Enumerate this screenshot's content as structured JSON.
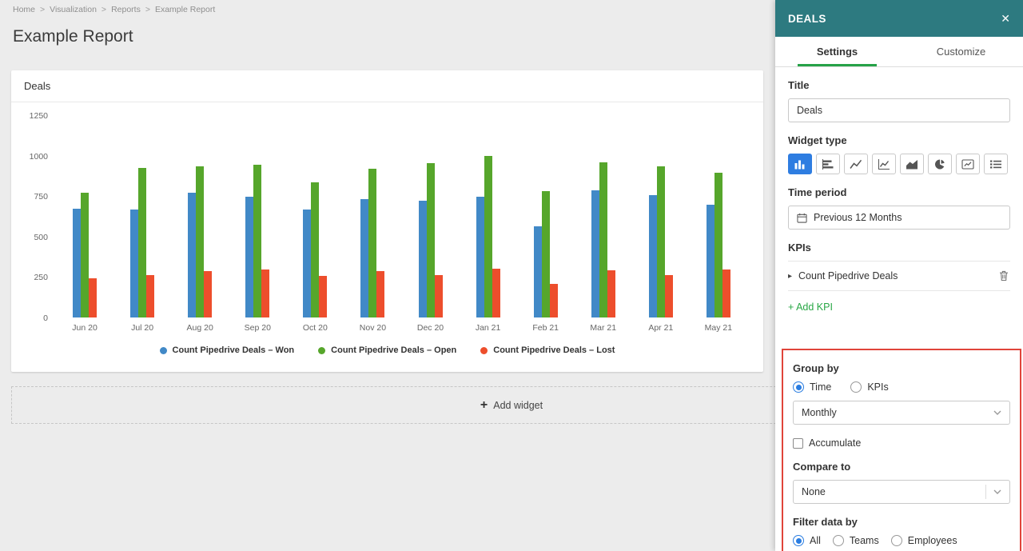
{
  "breadcrumb": {
    "separator": ">",
    "items": [
      "Home",
      "Visualization",
      "Reports",
      "Example Report"
    ]
  },
  "page": {
    "title": "Example Report",
    "add_widget_icon": "+",
    "add_widget_label": "Add widget"
  },
  "chart_data": {
    "type": "bar",
    "title": "Deals",
    "categories": [
      "Jun 20",
      "Jul 20",
      "Aug 20",
      "Sep 20",
      "Oct 20",
      "Nov 20",
      "Dec 20",
      "Jan 21",
      "Feb 21",
      "Mar 21",
      "Apr 21",
      "May 21"
    ],
    "series": [
      {
        "name": "Count Pipedrive Deals – Won",
        "color": "#4189c7",
        "values": [
          670,
          665,
          770,
          745,
          665,
          730,
          720,
          745,
          565,
          785,
          755,
          695
        ]
      },
      {
        "name": "Count Pipedrive Deals – Open",
        "color": "#56a62b",
        "values": [
          770,
          925,
          935,
          945,
          835,
          920,
          955,
          1000,
          780,
          960,
          935,
          895
        ]
      },
      {
        "name": "Count Pipedrive Deals – Lost",
        "color": "#ed4e2c",
        "values": [
          240,
          260,
          285,
          295,
          255,
          285,
          260,
          300,
          210,
          290,
          260,
          295
        ]
      }
    ],
    "ylim": [
      0,
      1250
    ],
    "yticks": [
      0,
      250,
      500,
      750,
      1000,
      1250
    ],
    "grid": false,
    "legend_position": "bottom"
  },
  "panel": {
    "header": {
      "title": "DEALS",
      "close_icon": "✕"
    },
    "tabs": [
      {
        "label": "Settings",
        "active": true
      },
      {
        "label": "Customize",
        "active": false
      }
    ],
    "title_field": {
      "label": "Title",
      "value": "Deals"
    },
    "widget_type": {
      "label": "Widget type",
      "options": [
        {
          "name": "column-chart",
          "active": true
        },
        {
          "name": "bar-chart",
          "active": false
        },
        {
          "name": "line-chart",
          "active": false
        },
        {
          "name": "combo-chart",
          "active": false
        },
        {
          "name": "area-chart",
          "active": false
        },
        {
          "name": "pie-chart",
          "active": false
        },
        {
          "name": "number-chart",
          "active": false
        },
        {
          "name": "table-chart",
          "active": false
        }
      ]
    },
    "time_period": {
      "label": "Time period",
      "icon": "calendar-icon",
      "value": "Previous 12 Months"
    },
    "kpis": {
      "label": "KPIs",
      "expander_icon": "▸",
      "items": [
        {
          "name": "Count Pipedrive Deals"
        }
      ],
      "add_label": "+ Add KPI"
    },
    "group_by": {
      "label": "Group by",
      "options": [
        {
          "label": "Time",
          "selected": true
        },
        {
          "label": "KPIs",
          "selected": false
        }
      ],
      "interval": "Monthly",
      "accumulate_label": "Accumulate",
      "accumulate_checked": false
    },
    "compare_to": {
      "label": "Compare to",
      "value": "None"
    },
    "filter": {
      "label": "Filter data by",
      "options": [
        {
          "label": "All",
          "selected": true
        },
        {
          "label": "Teams",
          "selected": false
        },
        {
          "label": "Employees",
          "selected": false
        }
      ]
    }
  },
  "colors": {
    "accent_blue": "#2e7de1",
    "teal_header": "#2d7a80",
    "tab_active_green": "#26a248",
    "add_kpi_green": "#28a745",
    "highlight_red": "#e0443a"
  }
}
